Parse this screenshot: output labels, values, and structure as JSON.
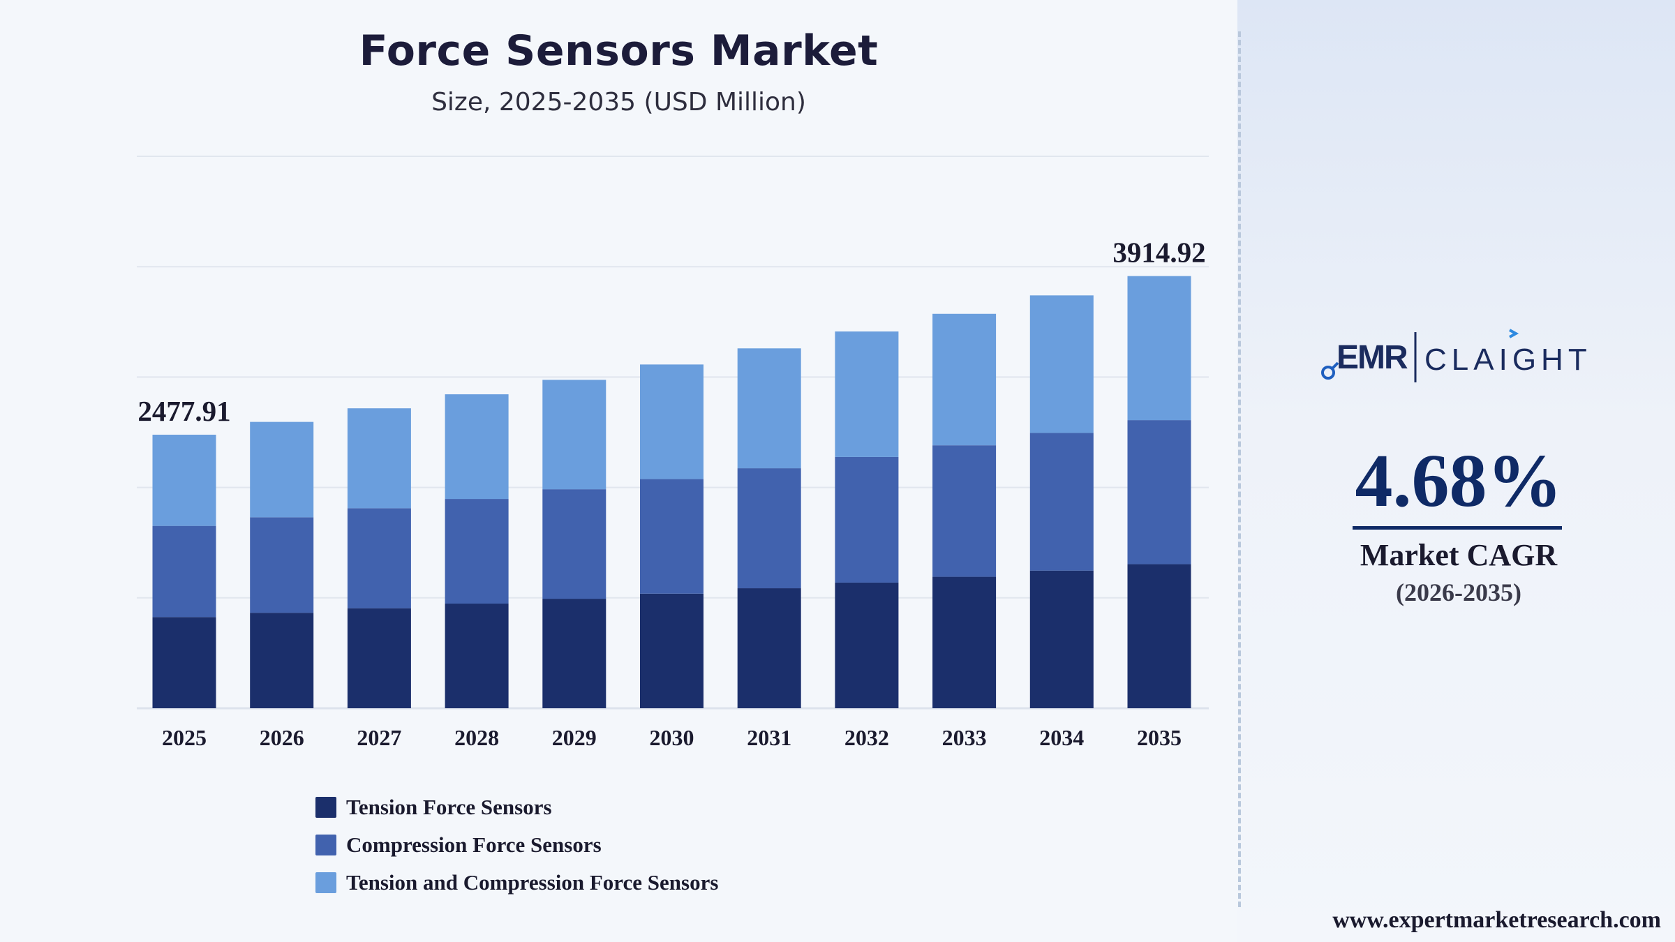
{
  "header": {
    "title": "Force Sensors Market",
    "subtitle": "Size, 2025-2035 (USD Million)"
  },
  "colors": {
    "tension": "#1b2f6b",
    "compression": "#4162ae",
    "tension_compression": "#6a9edd",
    "accent": "#0f2a66"
  },
  "chart_data": {
    "type": "bar",
    "stacked": true,
    "categories": [
      "2025",
      "2026",
      "2027",
      "2028",
      "2029",
      "2030",
      "2031",
      "2032",
      "2033",
      "2034",
      "2035"
    ],
    "series": [
      {
        "name": "Tension Force Sensors",
        "values": [
          826,
          865,
          906,
          948,
          992,
          1038,
          1087,
          1138,
          1191,
          1247,
          1305
        ]
      },
      {
        "name": "Compression Force Sensors",
        "values": [
          826,
          865,
          906,
          948,
          992,
          1038,
          1087,
          1138,
          1191,
          1247,
          1305
        ]
      },
      {
        "name": "Tension and Compression Force Sensors",
        "values": [
          826,
          864,
          905,
          948,
          991,
          1038,
          1086,
          1137,
          1191,
          1246,
          1305
        ]
      }
    ],
    "totals": [
      2477.91,
      2594,
      2717,
      2844,
      2975,
      3114,
      3260,
      3413,
      3573,
      3740,
      3914.92
    ],
    "data_labels": [
      {
        "category": "2025",
        "text": "2477.91"
      },
      {
        "category": "2035",
        "text": "3914.92"
      }
    ],
    "ylim": [
      0,
      5000
    ],
    "grid": true,
    "legend_position": "bottom"
  },
  "legend": {
    "items": [
      {
        "label": "Tension Force Sensors",
        "color": "#1b2f6b"
      },
      {
        "label": "Compression Force Sensors",
        "color": "#4162ae"
      },
      {
        "label": "Tension and Compression Force Sensors",
        "color": "#6a9edd"
      }
    ]
  },
  "branding": {
    "logo_left": "EMR",
    "logo_right": "CLAIGHT",
    "cagr_value": "4.68%",
    "cagr_label": "Market CAGR",
    "cagr_period": "(2026-2035)",
    "website": "www.expertmarketresearch.com"
  }
}
